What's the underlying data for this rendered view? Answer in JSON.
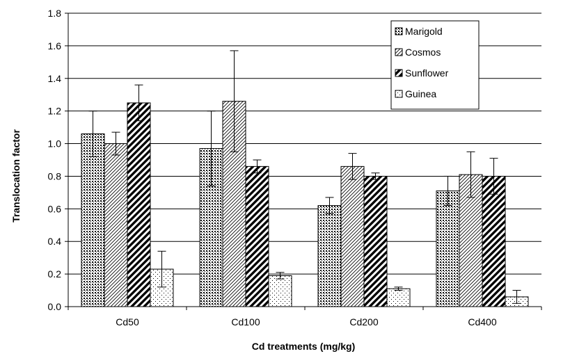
{
  "chart_data": {
    "type": "bar",
    "title": "",
    "xlabel": "Cd treatments (mg/kg)",
    "ylabel": "Translocation factor",
    "categories": [
      "Cd50",
      "Cd100",
      "Cd200",
      "Cd400"
    ],
    "ylim": [
      0,
      1.8
    ],
    "yticks": [
      "0.0",
      "0.2",
      "0.4",
      "0.6",
      "0.8",
      "1.0",
      "1.2",
      "1.4",
      "1.6",
      "1.8"
    ],
    "grid": true,
    "legend_position": "top-right",
    "series": [
      {
        "name": "Marigold",
        "pattern": "dots-dense",
        "values": [
          1.06,
          0.97,
          0.62,
          0.71
        ],
        "errors": [
          0.14,
          0.23,
          0.05,
          0.09
        ]
      },
      {
        "name": "Cosmos",
        "pattern": "diagonal-thin",
        "values": [
          1.0,
          1.26,
          0.86,
          0.81
        ],
        "errors": [
          0.07,
          0.31,
          0.08,
          0.14
        ]
      },
      {
        "name": "Sunflower",
        "pattern": "diagonal-thick",
        "values": [
          1.25,
          0.86,
          0.8,
          0.8
        ],
        "errors": [
          0.11,
          0.04,
          0.02,
          0.11
        ]
      },
      {
        "name": "Guinea",
        "pattern": "dots-sparse",
        "values": [
          0.23,
          0.19,
          0.11,
          0.06
        ],
        "errors": [
          0.11,
          0.02,
          0.01,
          0.04
        ]
      }
    ]
  }
}
